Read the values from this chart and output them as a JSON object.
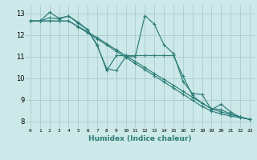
{
  "xlabel": "Humidex (Indice chaleur)",
  "bg_color": "#cce8e8",
  "grid_color": "#aacccc",
  "line_color": "#2d7d78",
  "xlim": [
    -0.5,
    23.5
  ],
  "ylim": [
    7.7,
    13.4
  ],
  "xticks": [
    0,
    1,
    2,
    3,
    4,
    5,
    6,
    7,
    8,
    9,
    10,
    11,
    12,
    13,
    14,
    15,
    16,
    17,
    18,
    19,
    20,
    21,
    22,
    23
  ],
  "yticks": [
    8,
    9,
    10,
    11,
    12,
    13
  ],
  "lines": [
    {
      "x": [
        0,
        1,
        2,
        3,
        4,
        5,
        6,
        7,
        8,
        9,
        10,
        11,
        12,
        13,
        14,
        15,
        16,
        17,
        18,
        19,
        20,
        21,
        22,
        23
      ],
      "y": [
        12.65,
        12.65,
        13.05,
        12.78,
        12.88,
        12.55,
        12.25,
        11.5,
        10.45,
        10.35,
        11.0,
        11.0,
        12.9,
        12.5,
        11.55,
        11.15,
        9.85,
        9.3,
        9.25,
        8.55,
        8.8,
        8.45,
        8.2,
        8.1
      ]
    },
    {
      "x": [
        0,
        1,
        2,
        3,
        4,
        5,
        6,
        7,
        8,
        9,
        10,
        11,
        12,
        13,
        14,
        15,
        16,
        17,
        18,
        19,
        20,
        21,
        22,
        23
      ],
      "y": [
        12.65,
        12.65,
        12.8,
        12.75,
        12.88,
        12.6,
        12.25,
        11.55,
        10.35,
        11.05,
        11.05,
        11.05,
        11.05,
        11.05,
        11.05,
        11.05,
        10.1,
        9.2,
        8.85,
        8.6,
        8.55,
        8.35,
        8.2,
        8.1
      ]
    },
    {
      "x": [
        0,
        1,
        2,
        3,
        4,
        5,
        6,
        7,
        8,
        9,
        10,
        11,
        12,
        13,
        14,
        15,
        16,
        17,
        18,
        19,
        20,
        21,
        22,
        23
      ],
      "y": [
        12.65,
        12.65,
        12.65,
        12.65,
        12.65,
        12.38,
        12.1,
        11.82,
        11.54,
        11.25,
        10.97,
        10.68,
        10.4,
        10.12,
        9.83,
        9.55,
        9.27,
        8.98,
        8.7,
        8.48,
        8.35,
        8.25,
        8.18,
        8.1
      ]
    },
    {
      "x": [
        0,
        1,
        2,
        3,
        4,
        5,
        6,
        7,
        8,
        9,
        10,
        11,
        12,
        13,
        14,
        15,
        16,
        17,
        18,
        19,
        20,
        21,
        22,
        23
      ],
      "y": [
        12.65,
        12.65,
        12.65,
        12.65,
        12.65,
        12.4,
        12.15,
        11.88,
        11.6,
        11.32,
        11.05,
        10.78,
        10.5,
        10.22,
        9.95,
        9.68,
        9.4,
        9.12,
        8.85,
        8.58,
        8.45,
        8.32,
        8.22,
        8.1
      ]
    }
  ]
}
